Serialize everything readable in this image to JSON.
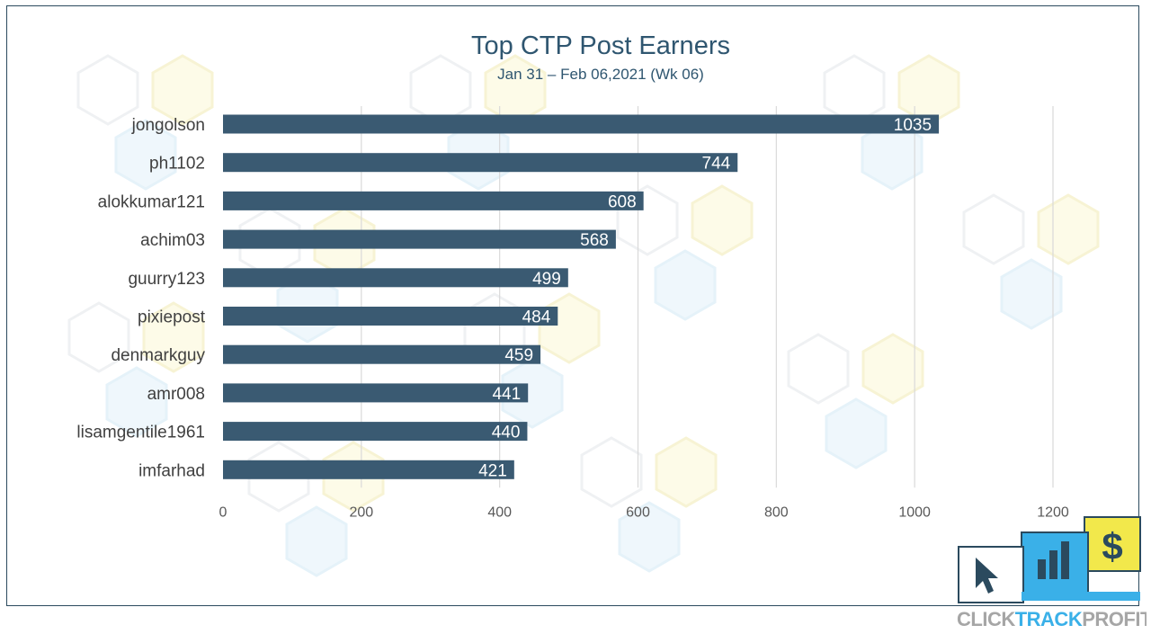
{
  "colors": {
    "bar": "#3a5a72",
    "title": "#2f5670",
    "grid": "#d9d9d9",
    "axis_text": "#595959",
    "category_text": "#404040",
    "frame": "#2b4a5e",
    "logo_blue": "#3ab0e8",
    "logo_yellow": "#f2e84b",
    "logo_dark": "#2b4a5e",
    "logo_text_gray": "#a6a6a6"
  },
  "chart_data": {
    "type": "bar",
    "orientation": "horizontal",
    "title": "Top CTP Post Earners",
    "subtitle": "Jan 31 – Feb 06,2021 (Wk 06)",
    "categories": [
      "jongolson",
      "ph1102",
      "alokkumar121",
      "achim03",
      "guurry123",
      "pixiepost",
      "denmarkguy",
      "amr008",
      "lisamgentile1961",
      "imfarhad"
    ],
    "values": [
      1035,
      744,
      608,
      568,
      499,
      484,
      459,
      441,
      440,
      421
    ],
    "xlim": [
      0,
      1200
    ],
    "xticks": [
      0,
      200,
      400,
      600,
      800,
      1000,
      1200
    ],
    "xlabel": "",
    "ylabel": "",
    "grid": "vertical",
    "data_labels": "inside-end"
  },
  "logo": {
    "word_parts": [
      "CLICK",
      "TRACK",
      "PROFIT"
    ],
    "icons": [
      "cursor-icon",
      "bar-chart-icon",
      "dollar-icon"
    ],
    "dollar_glyph": "$"
  }
}
